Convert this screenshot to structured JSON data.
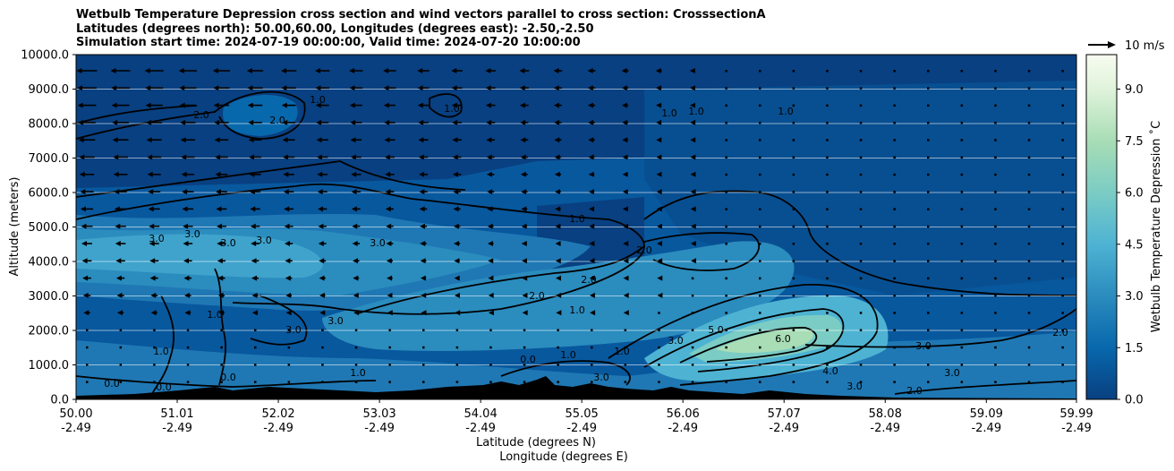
{
  "chart_data": {
    "type": "contour",
    "title_lines": [
      "Wetbulb Temperature Depression cross section and wind vectors parallel to cross section: CrosssectionA",
      "Latitudes (degrees north): 50.00,60.00, Longitudes (degrees east): -2.50,-2.50",
      "Simulation start time: 2024-07-19 00:00:00, Valid time: 2024-07-20 10:00:00"
    ],
    "ylabel": "Altitude (meters)",
    "xlabel_line1": "Latitude (degrees N)",
    "xlabel_line2": "Longitude (degrees E)",
    "ylim": [
      0,
      10000
    ],
    "y_ticks": [
      "0.0",
      "1000.0",
      "2000.0",
      "3000.0",
      "4000.0",
      "5000.0",
      "6000.0",
      "7000.0",
      "8000.0",
      "9000.0",
      "10000.0"
    ],
    "x_ticks_lat": [
      "50.00",
      "51.01",
      "52.02",
      "53.03",
      "54.04",
      "55.05",
      "56.06",
      "57.07",
      "58.08",
      "59.09",
      "59.99"
    ],
    "x_ticks_lon": [
      "-2.49",
      "-2.49",
      "-2.49",
      "-2.49",
      "-2.49",
      "-2.49",
      "-2.49",
      "-2.49",
      "-2.49",
      "-2.49",
      "-2.49"
    ],
    "colorbar": {
      "label": "Wetbulb Temperature Depression ˚C",
      "range": [
        0,
        10
      ],
      "ticks": [
        "0.0",
        "1.5",
        "3.0",
        "4.5",
        "6.0",
        "7.5",
        "9.0"
      ],
      "colors": [
        "#084081",
        "#0868ac",
        "#2b8cbe",
        "#4eb3d3",
        "#7bccc4",
        "#a8ddb5",
        "#ccebc5",
        "#e0f3db",
        "#f7fcf0"
      ]
    },
    "wind_key": {
      "label": "10 m/s",
      "speed": 10
    },
    "contour_labels": [
      "0.0",
      "1.0",
      "2.0",
      "3.0",
      "4.0",
      "5.0",
      "6.0"
    ],
    "gridlines": "horizontal"
  }
}
